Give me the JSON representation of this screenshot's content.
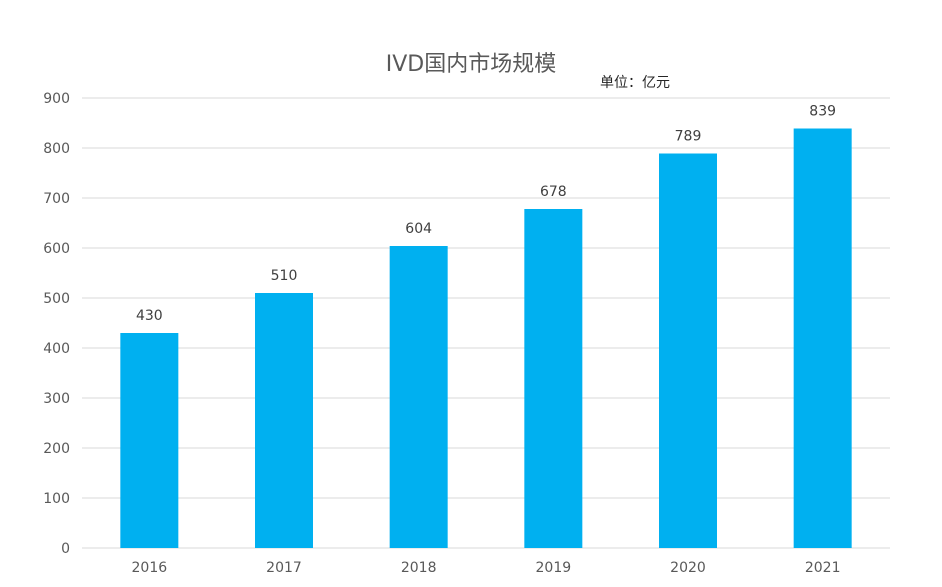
{
  "chart_data": {
    "type": "bar",
    "title": "IVD国内市场规模",
    "unit_label": "单位：亿元",
    "categories": [
      "2016",
      "2017",
      "2018",
      "2019",
      "2020",
      "2021"
    ],
    "values": [
      430,
      510,
      604,
      678,
      789,
      839
    ],
    "ylim": [
      0,
      900
    ],
    "yticks": [
      0,
      100,
      200,
      300,
      400,
      500,
      600,
      700,
      800,
      900
    ],
    "grid": true,
    "legend": "none",
    "xlabel": "",
    "ylabel": ""
  },
  "colors": {
    "bar": "#00B0F0",
    "grid": "#D9D9D9",
    "axis_text": "#595959",
    "label_text": "#404040"
  }
}
